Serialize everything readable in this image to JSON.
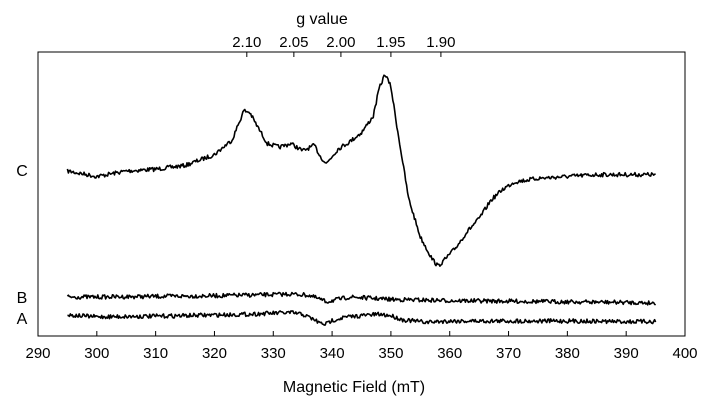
{
  "chart_data": {
    "type": "line",
    "title": "",
    "xlabel": "Magnetic Field (mT)",
    "top_axis_label": "g value",
    "xlim": [
      290,
      400
    ],
    "x_ticks": [
      290,
      300,
      310,
      320,
      330,
      340,
      350,
      360,
      370,
      380,
      390,
      400
    ],
    "top_ticks": [
      {
        "label": "2.10",
        "field": 325.5
      },
      {
        "label": "2.05",
        "field": 333.5
      },
      {
        "label": "2.00",
        "field": 341.5
      },
      {
        "label": "1.95",
        "field": 350.0
      },
      {
        "label": "1.90",
        "field": 358.5
      }
    ],
    "grid": false,
    "legend": "none",
    "y_units": "arbitrary",
    "series": [
      {
        "name": "C",
        "x": [
          295,
          300,
          305,
          310,
          315,
          320,
          323,
          325,
          326,
          327,
          329,
          331,
          333,
          335,
          337,
          338,
          339,
          341,
          343,
          345,
          347,
          348,
          349,
          350,
          351,
          352,
          353,
          355,
          357,
          358,
          359,
          361,
          363,
          365,
          367,
          369,
          371,
          375,
          380,
          385,
          390,
          395
        ],
        "y": [
          0.0,
          -0.3,
          0.0,
          0.1,
          0.3,
          0.9,
          1.7,
          3.3,
          3.2,
          2.6,
          1.5,
          1.3,
          1.5,
          1.1,
          1.4,
          0.8,
          0.4,
          1.2,
          1.6,
          2.1,
          3.0,
          4.5,
          5.3,
          4.6,
          2.5,
          0.5,
          -1.5,
          -3.6,
          -4.8,
          -5.2,
          -4.9,
          -4.2,
          -3.3,
          -2.6,
          -1.6,
          -1.0,
          -0.6,
          -0.4,
          -0.3,
          -0.2,
          -0.2,
          -0.2
        ]
      },
      {
        "name": "B",
        "x": [
          295,
          300,
          310,
          320,
          330,
          333,
          336,
          338,
          339,
          341,
          343,
          345,
          350,
          360,
          370,
          380,
          390,
          395
        ],
        "y": [
          0.0,
          0.0,
          0.05,
          0.1,
          0.2,
          0.25,
          0.15,
          -0.2,
          -0.4,
          -0.2,
          0.0,
          -0.05,
          -0.2,
          -0.3,
          -0.35,
          -0.4,
          -0.45,
          -0.5
        ]
      },
      {
        "name": "A",
        "x": [
          295,
          300,
          310,
          320,
          325,
          330,
          333,
          335,
          337,
          338,
          339,
          340,
          342,
          344,
          346,
          348,
          350,
          352,
          354,
          356,
          360,
          370,
          380,
          390,
          395
        ],
        "y": [
          0.0,
          -0.15,
          -0.1,
          0.0,
          0.05,
          0.15,
          0.2,
          0.05,
          -0.4,
          -0.7,
          -0.75,
          -0.45,
          -0.2,
          -0.1,
          0.0,
          0.05,
          -0.05,
          -0.4,
          -0.5,
          -0.6,
          -0.5,
          -0.5,
          -0.5,
          -0.55,
          -0.55
        ]
      }
    ]
  }
}
